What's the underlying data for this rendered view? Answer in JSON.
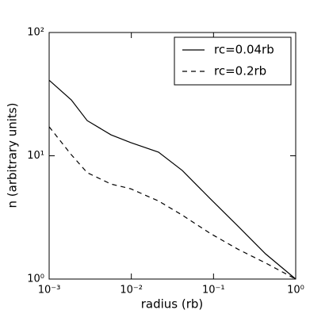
{
  "chart_data": {
    "type": "line",
    "x": [
      0.001,
      0.00186,
      0.0029,
      0.00565,
      0.0098,
      0.0214,
      0.0417,
      0.0908,
      0.197,
      0.43,
      1
    ],
    "series": [
      {
        "name": "rc=0.04rb",
        "color": "#000000",
        "dash": false,
        "values": [
          41,
          28.4,
          19.3,
          14.8,
          12.8,
          10.7,
          7.6,
          4.5,
          2.7,
          1.6,
          1
        ]
      },
      {
        "name": "rc=0.2rb",
        "color": "#000000",
        "dash": true,
        "values": [
          17.2,
          10.2,
          7.3,
          5.9,
          5.4,
          4.3,
          3.3,
          2.35,
          1.75,
          1.35,
          1
        ]
      }
    ],
    "xlabel": "radius (rb)",
    "ylabel": "n (arbitrary units)",
    "xscale": "log",
    "yscale": "log",
    "xlim": [
      0.001,
      1
    ],
    "ylim": [
      1,
      100
    ],
    "xticks": [
      {
        "value": 0.001,
        "label": "10⁻³"
      },
      {
        "value": 0.01,
        "label": "10⁻²"
      },
      {
        "value": 0.1,
        "label": "10⁻¹"
      },
      {
        "value": 1,
        "label": "10⁰"
      }
    ],
    "yticks": [
      {
        "value": 1,
        "label": "10⁰"
      },
      {
        "value": 10,
        "label": "10¹"
      },
      {
        "value": 100,
        "label": "10²"
      }
    ],
    "grid": false,
    "legend": "upper right"
  }
}
